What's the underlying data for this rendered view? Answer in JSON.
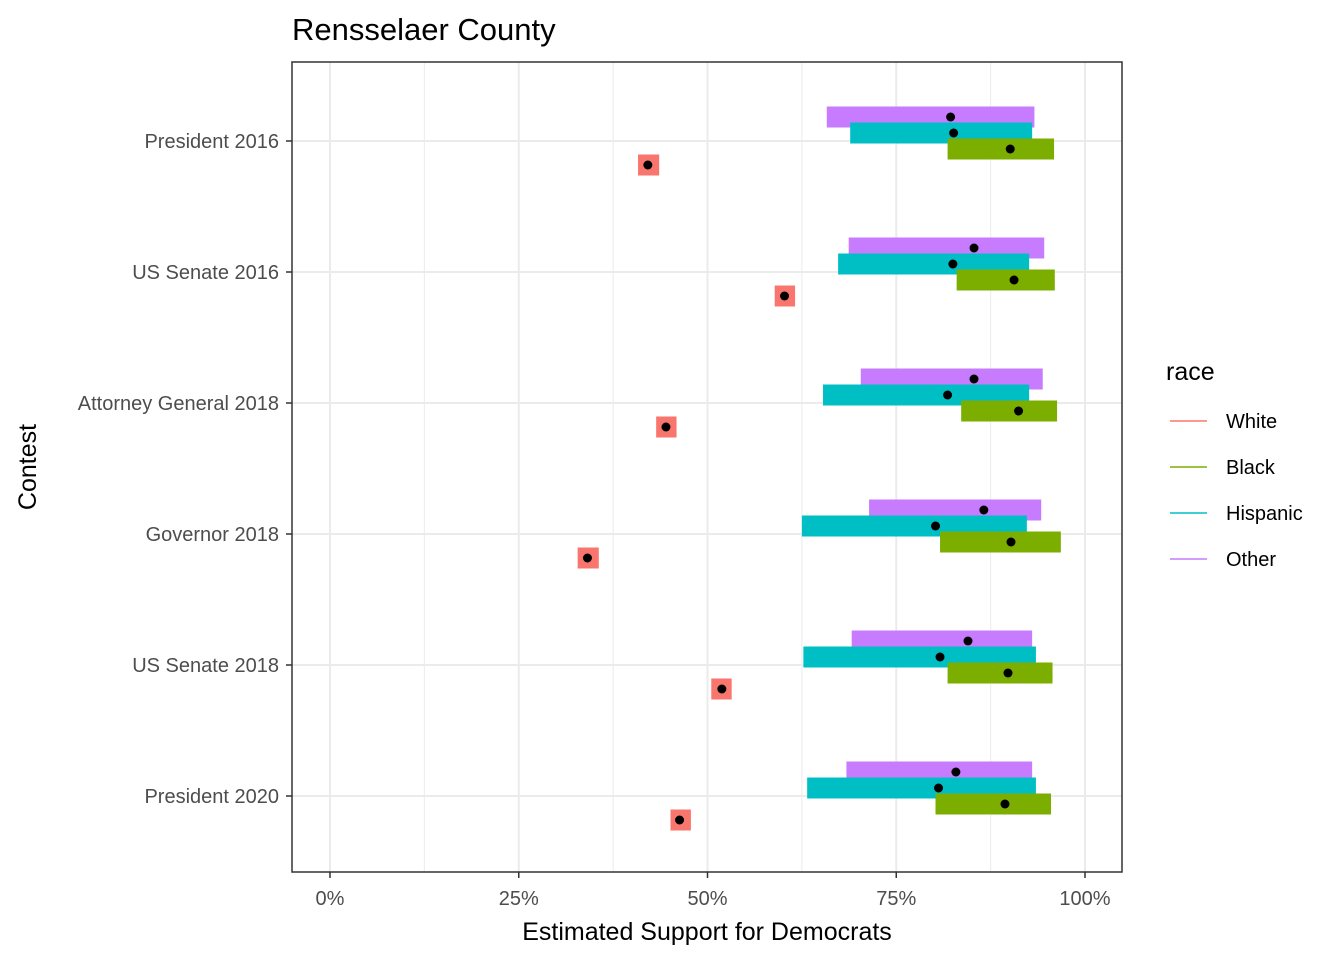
{
  "chart_data": {
    "type": "interval",
    "title": "Rensselaer County",
    "xlabel": "Estimated Support for Democrats",
    "ylabel": "Contest",
    "xlim": [
      -0.1,
      2.1
    ],
    "xticks": [
      0,
      0.25,
      0.5,
      0.75,
      1.0
    ],
    "xtick_labels": [
      "0%",
      "25%",
      "50%",
      "75%",
      "100%"
    ],
    "grid": true,
    "legend": {
      "title": "race",
      "placement": "right",
      "entries": [
        {
          "name": "White",
          "color": "#F8766D"
        },
        {
          "name": "Black",
          "color": "#7CAE00"
        },
        {
          "name": "Hispanic",
          "color": "#00BFC4"
        },
        {
          "name": "Other",
          "color": "#C77CFF"
        }
      ]
    },
    "categories": [
      "President 2016",
      "US Senate 2016",
      "Attorney General 2018",
      "Governor 2018",
      "US Senate 2018",
      "President 2020"
    ],
    "series": [
      {
        "name": "White",
        "color": "#F8766D",
        "estimates": [
          0.421,
          0.602,
          0.445,
          0.341,
          0.519,
          0.463
        ],
        "lower": [
          0.408,
          0.589,
          0.432,
          0.328,
          0.505,
          0.451
        ],
        "upper": [
          0.436,
          0.616,
          0.459,
          0.356,
          0.532,
          0.478
        ]
      },
      {
        "name": "Black",
        "color": "#7CAE00",
        "estimates": [
          0.901,
          0.906,
          0.912,
          0.902,
          0.898,
          0.894
        ],
        "lower": [
          0.818,
          0.83,
          0.836,
          0.808,
          0.818,
          0.802
        ],
        "upper": [
          0.959,
          0.96,
          0.963,
          0.968,
          0.957,
          0.955
        ]
      },
      {
        "name": "Hispanic",
        "color": "#00BFC4",
        "estimates": [
          0.826,
          0.825,
          0.818,
          0.802,
          0.808,
          0.806
        ],
        "lower": [
          0.689,
          0.673,
          0.653,
          0.625,
          0.627,
          0.632
        ],
        "upper": [
          0.93,
          0.926,
          0.926,
          0.923,
          0.935,
          0.935
        ]
      },
      {
        "name": "Other",
        "color": "#C77CFF",
        "estimates": [
          0.822,
          0.853,
          0.853,
          0.866,
          0.845,
          0.829
        ],
        "lower": [
          0.658,
          0.687,
          0.703,
          0.714,
          0.691,
          0.684
        ],
        "upper": [
          0.933,
          0.946,
          0.944,
          0.942,
          0.93,
          0.93
        ]
      }
    ]
  }
}
